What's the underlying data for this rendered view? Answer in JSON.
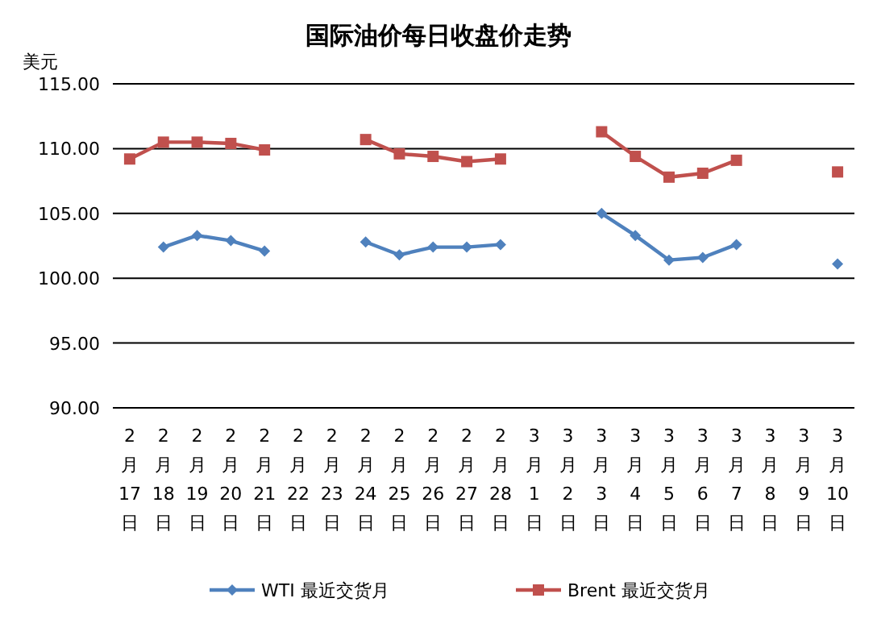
{
  "chart_data": {
    "type": "line",
    "title": "国际油价每日收盘价走势",
    "ylabel": "美元",
    "categories": [
      "2月17日",
      "2月18日",
      "2月19日",
      "2月20日",
      "2月21日",
      "2月22日",
      "2月23日",
      "2月24日",
      "2月25日",
      "2月26日",
      "2月27日",
      "2月28日",
      "3月1日",
      "3月2日",
      "3月3日",
      "3月4日",
      "3月5日",
      "3月6日",
      "3月7日",
      "3月8日",
      "3月9日",
      "3月10日"
    ],
    "series": [
      {
        "name": "WTI 最近交货月",
        "color": "#4f81bd",
        "marker": "diamond",
        "values": [
          null,
          102.4,
          103.3,
          102.9,
          102.1,
          null,
          null,
          102.8,
          101.8,
          102.4,
          102.4,
          102.6,
          null,
          null,
          105.0,
          103.3,
          101.4,
          101.6,
          102.6,
          null,
          null,
          101.1
        ]
      },
      {
        "name": "Brent 最近交货月",
        "color": "#c0504d",
        "marker": "square",
        "values": [
          109.2,
          110.5,
          110.5,
          110.4,
          109.9,
          null,
          null,
          110.7,
          109.6,
          109.4,
          109.0,
          109.2,
          null,
          null,
          111.3,
          109.4,
          107.8,
          108.1,
          109.1,
          null,
          null,
          108.2
        ]
      }
    ],
    "ylim": [
      90,
      115
    ],
    "yticks": [
      {
        "value": 90,
        "label": "90.00"
      },
      {
        "value": 95,
        "label": "95.00"
      },
      {
        "value": 100,
        "label": "100.00"
      },
      {
        "value": 105,
        "label": "105.00"
      },
      {
        "value": 110,
        "label": "110.00"
      },
      {
        "value": 115,
        "label": "115.00"
      }
    ],
    "grid": "y",
    "legend": "bottom"
  }
}
